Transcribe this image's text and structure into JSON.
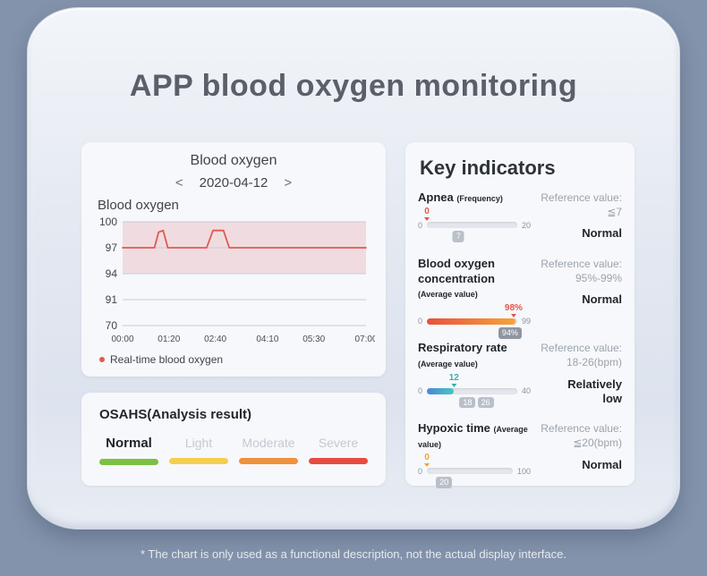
{
  "page": {
    "title": "APP blood oxygen monitoring",
    "footer_note": "* The chart is only used as a functional description, not the actual display interface."
  },
  "blood_oxygen_panel": {
    "title": "Blood oxygen",
    "date_prev": "<",
    "date": "2020-04-12",
    "date_next": ">",
    "chart_label": "Blood oxygen",
    "legend": "Real-time blood oxygen"
  },
  "chart_data": {
    "type": "line",
    "title": "Blood oxygen",
    "yticks": [
      100,
      97,
      94,
      91,
      70
    ],
    "xtick_labels": [
      "00:00",
      "01:20",
      "02:40",
      "04:10",
      "05:30",
      "07:00"
    ],
    "xtick_minutes": [
      0,
      80,
      160,
      250,
      330,
      420
    ],
    "normal_band": [
      94,
      100
    ],
    "grid": true,
    "legend_position": "bottom-left",
    "series": [
      {
        "name": "Real-time blood oxygen",
        "color": "#e05a4e",
        "points": [
          [
            0,
            97
          ],
          [
            55,
            97
          ],
          [
            62,
            98.8
          ],
          [
            70,
            99
          ],
          [
            78,
            97
          ],
          [
            145,
            97
          ],
          [
            156,
            99
          ],
          [
            174,
            99
          ],
          [
            184,
            97
          ],
          [
            420,
            97
          ]
        ]
      }
    ]
  },
  "osahs_panel": {
    "title": "OSAHS(Analysis result)",
    "levels": [
      {
        "label": "Normal",
        "color": "#7cc142",
        "active": true
      },
      {
        "label": "Light",
        "color": "#f5ce4e",
        "active": false
      },
      {
        "label": "Moderate",
        "color": "#f0913d",
        "active": false
      },
      {
        "label": "Severe",
        "color": "#e74c41",
        "active": false
      }
    ]
  },
  "key_indicators": {
    "title": "Key indicators",
    "indicators": [
      {
        "name": "Apnea",
        "sub": "(Frequency)",
        "reference_label": "Reference value:",
        "reference_value": "≦7",
        "status": "Normal",
        "scale_min": "0",
        "scale_max": "20",
        "marker": {
          "value": "0",
          "pct": 0,
          "color": "#e2574c"
        },
        "fill": {
          "pct": 0,
          "from": "",
          "to": ""
        },
        "badges": [
          {
            "label": "7",
            "pct": 35,
            "dark": false
          }
        ]
      },
      {
        "name": "Blood oxygen concentration",
        "sub": "(Average value)",
        "reference_label": "Reference value:",
        "reference_value": "95%-99%",
        "status": "Normal",
        "scale_min": "0",
        "scale_max": "99",
        "marker": {
          "value": "98%",
          "pct": 96,
          "color": "#e2574c"
        },
        "fill": {
          "pct": 98,
          "from": "#e8503e",
          "to": "#f5a53c"
        },
        "badges": [
          {
            "label": "94%",
            "pct": 92,
            "dark": true
          }
        ]
      },
      {
        "name": "Respiratory rate",
        "sub": "(Average value)",
        "reference_label": "Reference value:",
        "reference_value": "18-26(bpm)",
        "status": "Relatively low",
        "scale_min": "0",
        "scale_max": "40",
        "marker": {
          "value": "12",
          "pct": 30,
          "color": "#2fb3ac"
        },
        "fill": {
          "pct": 30,
          "from": "#4a86d8",
          "to": "#45c8c2"
        },
        "badges": [
          {
            "label": "18",
            "pct": 45,
            "dark": false
          },
          {
            "label": "26",
            "pct": 65,
            "dark": false
          }
        ]
      },
      {
        "name": "Hypoxic time",
        "sub": "(Average value)",
        "reference_label": "Reference value:",
        "reference_value": "≦20(bpm)",
        "status": "Normal",
        "scale_min": "0",
        "scale_max": "100",
        "marker": {
          "value": "0",
          "pct": 0,
          "color": "#f0a23c"
        },
        "fill": {
          "pct": 0,
          "from": "",
          "to": ""
        },
        "badges": [
          {
            "label": "20",
            "pct": 20,
            "dark": false
          }
        ]
      }
    ]
  }
}
